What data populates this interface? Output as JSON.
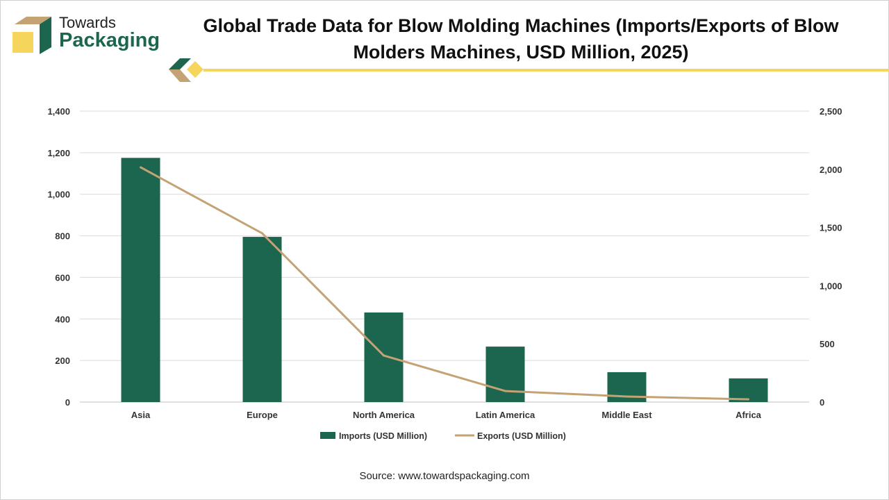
{
  "brand": {
    "line1": "Towards",
    "line2": "Packaging"
  },
  "source": "Source: www.towardspackaging.com",
  "colors": {
    "bar": "#1c6650",
    "line": "#c4a273",
    "accent": "#f6d55c"
  },
  "chart_data": {
    "type": "bar",
    "title": "Global Trade Data for Blow Molding Machines (Imports/Exports of Blow Molders Machines, USD Million, 2025)",
    "categories": [
      "Asia",
      "Europe",
      "North America",
      "Latin America",
      "Middle East",
      "Africa"
    ],
    "series": [
      {
        "name": "Imports (USD Million)",
        "type": "bar",
        "axis": "left",
        "values": [
          1175,
          795,
          431,
          267,
          144,
          114
        ]
      },
      {
        "name": "Exports (USD Million)",
        "type": "line",
        "axis": "right",
        "values": [
          2017,
          1450,
          400,
          95,
          48,
          24
        ]
      }
    ],
    "ylim_left": [
      0,
      1400
    ],
    "yticks_left": [
      "0",
      "200",
      "400",
      "600",
      "800",
      "1,000",
      "1,200",
      "1,400"
    ],
    "ylim_right": [
      0,
      2500
    ],
    "yticks_right": [
      "0",
      "500",
      "1,000",
      "1,500",
      "2,000",
      "2,500"
    ],
    "grid": true,
    "legend": "bottom"
  }
}
